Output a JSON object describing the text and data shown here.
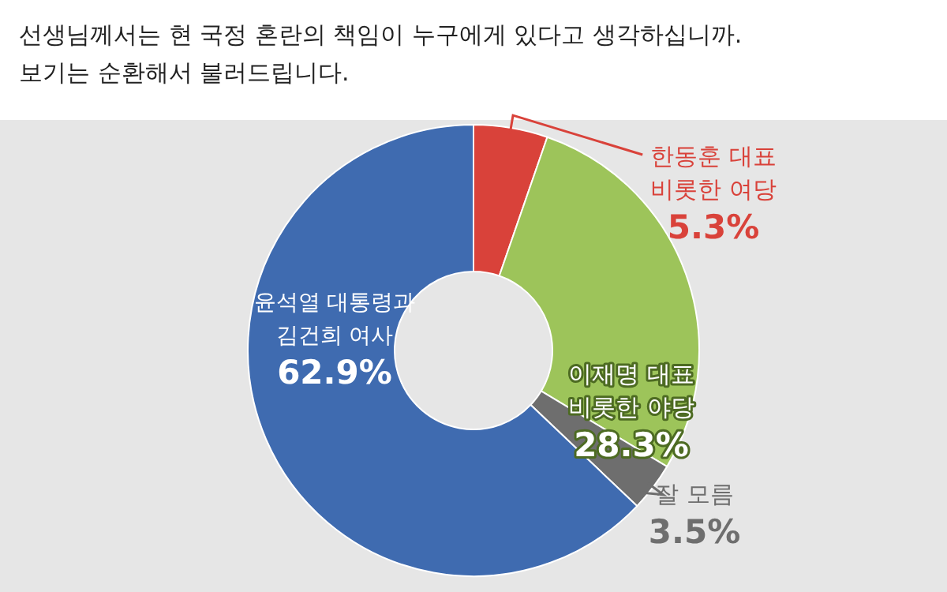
{
  "chart_data": {
    "type": "donut",
    "title": "선생님께서는 현 국정 혼란의 책임이 누구에게 있다고 생각하십니까.\n보기는 순환해서 불러드립니다.",
    "categories": [
      "한동훈 대표\n비롯한 여당",
      "이재명 대표\n비롯한 야당",
      "잘 모름",
      "윤석열 대통령과\n김건희 여사"
    ],
    "values": [
      5.3,
      28.3,
      3.5,
      62.9
    ],
    "colors": [
      "#d9423a",
      "#9dc45a",
      "#6e6e6e",
      "#3f6bb0"
    ],
    "value_labels": [
      "5.3%",
      "28.3%",
      "3.5%",
      "62.9%"
    ]
  }
}
